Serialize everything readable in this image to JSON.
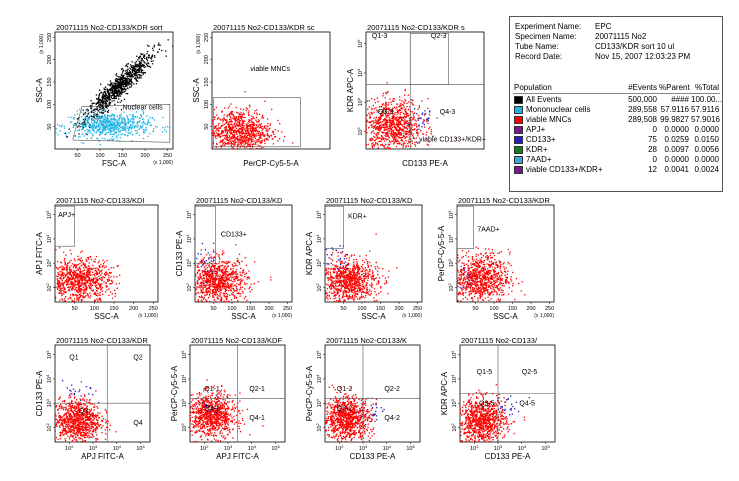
{
  "chart_data": [
    {
      "type": "scatter",
      "title": "20071115 No2-CD133/KDR sort",
      "xlabel": "FSC-A",
      "ylabel": "SSC-A",
      "x_scale": "linear",
      "y_scale": "linear",
      "x_ticks": [
        "50",
        "100",
        "150",
        "200",
        "250"
      ],
      "y_ticks": [
        "50",
        "100",
        "150",
        "200",
        "250"
      ],
      "x_mult": "(x 1,000)",
      "y_mult": "(x 1,000)",
      "xlim": [
        0,
        262
      ],
      "ylim": [
        0,
        262
      ],
      "clouds": [
        {
          "color": "#000000",
          "n": 900,
          "shape": "diag",
          "cx": 140,
          "cy": 140,
          "sx": 55,
          "sy": 10,
          "slope": 1.0
        },
        {
          "color": "#1fb3e6",
          "n": 650,
          "shape": "gauss",
          "cx": 120,
          "cy": 55,
          "sx": 45,
          "sy": 14
        }
      ],
      "gates": [
        {
          "kind": "poly",
          "points": [
            [
              40,
              25
            ],
            [
              60,
              95
            ],
            [
              255,
              100
            ],
            [
              255,
              15
            ],
            [
              40,
              20
            ]
          ],
          "label": "Nuclear cells",
          "label_pos": [
            150,
            88
          ]
        }
      ]
    },
    {
      "type": "scatter",
      "title": "20071115 No2-CD133/KDR sc",
      "xlabel": "PerCP-Cy5-5-A",
      "ylabel": "SSC-A",
      "x_scale": "log",
      "y_scale": "linear",
      "x_ticks": [],
      "y_ticks": [
        "50",
        "100",
        "150",
        "200",
        "250"
      ],
      "y_mult": "(x 1,000)",
      "xlim": [
        1,
        5
      ],
      "ylim": [
        0,
        262
      ],
      "clouds": [
        {
          "color": "#ff0000",
          "n": 900,
          "shape": "gauss",
          "cx": 1.9,
          "cy": 40,
          "sx": 0.55,
          "sy": 25
        }
      ],
      "gates": [
        {
          "kind": "rect",
          "x0": 1.05,
          "x1": 4.0,
          "y0": 5,
          "y1": 115,
          "label": "viable MNCs",
          "label_pos": [
            2.3,
            175
          ]
        }
      ]
    },
    {
      "type": "scatter",
      "title": "20071115 No2-CD133/KDR s",
      "xlabel": "CD133 PE-A",
      "ylabel": "KDR APC-A",
      "x_scale": "log",
      "y_scale": "log",
      "x_ticks": [],
      "y_ticks": [
        "10^2",
        "10^3",
        "10^4",
        "10^5"
      ],
      "xlim": [
        1.4,
        5.4
      ],
      "ylim": [
        1.4,
        5.4
      ],
      "clouds": [
        {
          "color": "#ff0000",
          "n": 900,
          "shape": "gauss",
          "cx": 2.3,
          "cy": 2.2,
          "sx": 0.5,
          "sy": 0.45
        },
        {
          "color": "#2020c0",
          "n": 30,
          "shape": "gauss",
          "cx": 3.2,
          "cy": 2.5,
          "sx": 0.25,
          "sy": 0.3
        }
      ],
      "quad": {
        "x": 2.9,
        "y": 3.6,
        "labels": [
          "Q1-3",
          "Q2-3",
          "Q3-3",
          "Q4-3"
        ],
        "label_pos": [
          [
            1.6,
            5.2
          ],
          [
            3.6,
            5.2
          ],
          [
            1.8,
            2.6
          ],
          [
            3.9,
            2.6
          ]
        ]
      },
      "gates": [
        {
          "kind": "rect",
          "x0": 2.9,
          "x1": 4.2,
          "y0": 3.6,
          "y1": 5.35,
          "label": "",
          "label_pos": [
            0,
            0
          ]
        }
      ],
      "extra_label": {
        "text": "viable CD133+/KDR+",
        "pos": [
          3.2,
          1.65
        ]
      }
    },
    {
      "type": "scatter",
      "title": "20071115 No2-CD133/KDI",
      "xlabel": "SSC-A",
      "ylabel": "APJ FITC-A",
      "x_scale": "linear",
      "y_scale": "log",
      "x_ticks": [
        "50",
        "100",
        "150",
        "200",
        "250"
      ],
      "y_ticks": [
        "10^2",
        "10^3",
        "10^4",
        "10^5"
      ],
      "x_mult": "(x 1,000)",
      "xlim": [
        0,
        262
      ],
      "ylim": [
        1.4,
        5.4
      ],
      "clouds": [
        {
          "color": "#ff0000",
          "n": 900,
          "shape": "gauss",
          "cx": 60,
          "cy": 2.3,
          "sx": 40,
          "sy": 0.45
        }
      ],
      "gates": [
        {
          "kind": "rect",
          "x0": 0,
          "x1": 50,
          "y0": 3.7,
          "y1": 5.35,
          "label": "APJ+",
          "label_pos": [
            8,
            4.9
          ]
        }
      ]
    },
    {
      "type": "scatter",
      "title": "20071115 No2-CD133/KD",
      "xlabel": "SSC-A",
      "ylabel": "CD133 PE-A",
      "x_scale": "linear",
      "y_scale": "log",
      "x_ticks": [
        "50",
        "100",
        "150",
        "200",
        "250"
      ],
      "y_ticks": [
        "10^2",
        "10^3",
        "10^4",
        "10^5"
      ],
      "x_mult": "(x 1,000)",
      "xlim": [
        0,
        262
      ],
      "ylim": [
        1.4,
        5.4
      ],
      "clouds": [
        {
          "color": "#ff0000",
          "n": 900,
          "shape": "gauss",
          "cx": 60,
          "cy": 2.3,
          "sx": 40,
          "sy": 0.45
        },
        {
          "color": "#2020c0",
          "n": 25,
          "shape": "gauss",
          "cx": 35,
          "cy": 3.1,
          "sx": 15,
          "sy": 0.3
        }
      ],
      "gates": [
        {
          "kind": "rect",
          "x0": 0,
          "x1": 55,
          "y0": 3.0,
          "y1": 5.35,
          "label": "CD133+",
          "label_pos": [
            70,
            4.1
          ]
        }
      ]
    },
    {
      "type": "scatter",
      "title": "20071115 No2-CD133/KD",
      "xlabel": "SSC-A",
      "ylabel": "KDR APC-A",
      "x_scale": "linear",
      "y_scale": "log",
      "x_ticks": [
        "50",
        "100",
        "150",
        "200",
        "250"
      ],
      "y_ticks": [
        "10^2",
        "10^3",
        "10^4",
        "10^5"
      ],
      "x_mult": "(x 1,000)",
      "xlim": [
        0,
        262
      ],
      "ylim": [
        1.4,
        5.4
      ],
      "clouds": [
        {
          "color": "#ff0000",
          "n": 900,
          "shape": "gauss",
          "cx": 60,
          "cy": 2.3,
          "sx": 40,
          "sy": 0.45
        },
        {
          "color": "#2020c0",
          "n": 25,
          "shape": "gauss",
          "cx": 30,
          "cy": 3.2,
          "sx": 15,
          "sy": 0.3
        }
      ],
      "gates": [
        {
          "kind": "rect",
          "x0": 0,
          "x1": 50,
          "y0": 3.6,
          "y1": 5.35,
          "label": "KDR+",
          "label_pos": [
            62,
            4.85
          ]
        }
      ]
    },
    {
      "type": "scatter",
      "title": "20071115 No2-CD133/KDR",
      "xlabel": "SSC-A",
      "ylabel": "PerCP-Cy5-5-A",
      "x_scale": "linear",
      "y_scale": "log",
      "x_ticks": [
        "50",
        "100",
        "150",
        "200",
        "250"
      ],
      "y_ticks": [
        "10^2",
        "10^3",
        "10^4",
        "10^5"
      ],
      "x_mult": "(x 1,000)",
      "xlim": [
        0,
        262
      ],
      "ylim": [
        1.4,
        5.4
      ],
      "clouds": [
        {
          "color": "#ff0000",
          "n": 900,
          "shape": "gauss",
          "cx": 60,
          "cy": 2.4,
          "sx": 40,
          "sy": 0.5
        },
        {
          "color": "#2020c0",
          "n": 15,
          "shape": "gauss",
          "cx": 25,
          "cy": 2.5,
          "sx": 10,
          "sy": 0.3
        }
      ],
      "gates": [
        {
          "kind": "rect",
          "x0": 0,
          "x1": 45,
          "y0": 3.6,
          "y1": 5.35,
          "label": "7AAD+",
          "label_pos": [
            55,
            4.3
          ]
        }
      ]
    },
    {
      "type": "scatter",
      "title": "20071115 No2-CD133/KDR",
      "xlabel": "APJ FITC-A",
      "ylabel": "CD133 PE-A",
      "x_scale": "log",
      "y_scale": "log",
      "x_ticks": [
        "10^2",
        "10^3",
        "10^4",
        "10^5"
      ],
      "y_ticks": [
        "10^2",
        "10^3",
        "10^4",
        "10^5"
      ],
      "xlim": [
        1.4,
        5.4
      ],
      "ylim": [
        1.4,
        5.4
      ],
      "clouds": [
        {
          "color": "#ff0000",
          "n": 900,
          "shape": "gauss",
          "cx": 2.3,
          "cy": 2.3,
          "sx": 0.5,
          "sy": 0.45
        },
        {
          "color": "#2020c0",
          "n": 20,
          "shape": "gauss",
          "cx": 2.4,
          "cy": 3.4,
          "sx": 0.35,
          "sy": 0.25
        }
      ],
      "quad": {
        "x": 3.6,
        "y": 3.0,
        "labels": [
          "Q1",
          "Q2",
          "Q3",
          "Q4"
        ],
        "label_pos": [
          [
            2.0,
            4.8
          ],
          [
            4.7,
            4.8
          ],
          [
            2.4,
            2.6
          ],
          [
            4.7,
            2.1
          ]
        ]
      }
    },
    {
      "type": "scatter",
      "title": "20071115 No2-CD133/KDF",
      "xlabel": "APJ FITC-A",
      "ylabel": "PerCP-Cy5-5-A",
      "x_scale": "log",
      "y_scale": "log",
      "x_ticks": [
        "10^2",
        "10^3",
        "10^4",
        "10^5"
      ],
      "y_ticks": [
        "10^2",
        "10^3",
        "10^4",
        "10^5"
      ],
      "xlim": [
        1.4,
        5.4
      ],
      "ylim": [
        1.4,
        5.4
      ],
      "clouds": [
        {
          "color": "#ff0000",
          "n": 900,
          "shape": "gauss",
          "cx": 2.3,
          "cy": 2.5,
          "sx": 0.5,
          "sy": 0.45
        },
        {
          "color": "#2020c0",
          "n": 10,
          "shape": "gauss",
          "cx": 2.2,
          "cy": 3.0,
          "sx": 0.3,
          "sy": 0.2
        }
      ],
      "quad": {
        "x": 3.4,
        "y": 3.2,
        "labels": [
          "Q1-1",
          "Q2-1",
          "Q3-1",
          "Q4-1"
        ],
        "label_pos": [
          [
            2.0,
            3.5
          ],
          [
            3.9,
            3.5
          ],
          [
            2.0,
            2.7
          ],
          [
            3.9,
            2.3
          ]
        ]
      }
    },
    {
      "type": "scatter",
      "title": "20071115 No2-CD133/K",
      "xlabel": "CD133 PE-A",
      "ylabel": "PerCP-Cy5-5-A",
      "x_scale": "log",
      "y_scale": "log",
      "x_ticks": [
        "10^2",
        "10^3",
        "10^4",
        "10^5"
      ],
      "y_ticks": [
        "10^2",
        "10^3",
        "10^4",
        "10^5"
      ],
      "xlim": [
        1.4,
        5.4
      ],
      "ylim": [
        1.4,
        5.4
      ],
      "clouds": [
        {
          "color": "#ff0000",
          "n": 900,
          "shape": "gauss",
          "cx": 2.3,
          "cy": 2.4,
          "sx": 0.5,
          "sy": 0.45
        },
        {
          "color": "#2020c0",
          "n": 25,
          "shape": "gauss",
          "cx": 3.4,
          "cy": 2.6,
          "sx": 0.3,
          "sy": 0.3
        }
      ],
      "quad": {
        "x": 3.0,
        "y": 3.2,
        "labels": [
          "Q1-2",
          "Q2-2",
          "Q3-2",
          "Q4-2"
        ],
        "label_pos": [
          [
            1.9,
            3.5
          ],
          [
            3.9,
            3.5
          ],
          [
            1.9,
            2.7
          ],
          [
            3.9,
            2.3
          ]
        ]
      }
    },
    {
      "type": "scatter",
      "title": "20071115 No2-CD133/",
      "xlabel": "CD133 PE-A",
      "ylabel": "KDR APC-A",
      "x_scale": "log",
      "y_scale": "log",
      "x_ticks": [
        "10^2",
        "10^3",
        "10^4",
        "10^5"
      ],
      "y_ticks": [
        "10^2",
        "10^3",
        "10^4",
        "10^5"
      ],
      "xlim": [
        1.4,
        5.4
      ],
      "ylim": [
        1.4,
        5.4
      ],
      "clouds": [
        {
          "color": "#ff0000",
          "n": 900,
          "shape": "gauss",
          "cx": 2.3,
          "cy": 2.3,
          "sx": 0.5,
          "sy": 0.45
        },
        {
          "color": "#2020c0",
          "n": 25,
          "shape": "gauss",
          "cx": 3.3,
          "cy": 2.9,
          "sx": 0.3,
          "sy": 0.3
        }
      ],
      "quad": {
        "x": 3.0,
        "y": 3.4,
        "labels": [
          "Q1-5",
          "Q2-5",
          "Q3-5",
          "Q4-5"
        ],
        "label_pos": [
          [
            2.1,
            4.2
          ],
          [
            4.0,
            4.2
          ],
          [
            2.2,
            2.9
          ],
          [
            3.9,
            2.9
          ]
        ]
      }
    }
  ],
  "info": {
    "experiment_label": "Experiment Name:",
    "experiment": "EPC",
    "specimen_label": "Specimen Name:",
    "specimen": "20071115 No2",
    "tube_label": "Tube Name:",
    "tube": "CD133/KDR sort 10 ul",
    "date_label": "Record Date:",
    "date": "Nov 15, 2007 12:03:23 PM",
    "headers": {
      "population": "Population",
      "events": "#Events",
      "parent": "%Parent",
      "total": "%Total"
    },
    "rows": [
      {
        "name": "All Events",
        "events": "500,000",
        "parent": "####",
        "total": "100.00...",
        "color": "#000000"
      },
      {
        "name": "Mononuclear cells",
        "events": "289,558",
        "parent": "57.9116",
        "total": "57.9116",
        "color": "#1fb3e6"
      },
      {
        "name": "viable MNCs",
        "events": "289,508",
        "parent": "99.9827",
        "total": "57.9016",
        "color": "#ff0000"
      },
      {
        "name": "APJ+",
        "events": "0",
        "parent": "0.0000",
        "total": "0.0000",
        "color": "#7a1a8a"
      },
      {
        "name": "CD133+",
        "events": "75",
        "parent": "0.0259",
        "total": "0.0150",
        "color": "#2020c0"
      },
      {
        "name": "KDR+",
        "events": "28",
        "parent": "0.0097",
        "total": "0.0056",
        "color": "#1a7a1a"
      },
      {
        "name": "7AAD+",
        "events": "0",
        "parent": "0.0000",
        "total": "0.0000",
        "color": "#3aa6e0"
      },
      {
        "name": "viable CD133+/KDR+",
        "events": "12",
        "parent": "0.0041",
        "total": "0.0024",
        "color": "#7a1a8a"
      }
    ]
  }
}
